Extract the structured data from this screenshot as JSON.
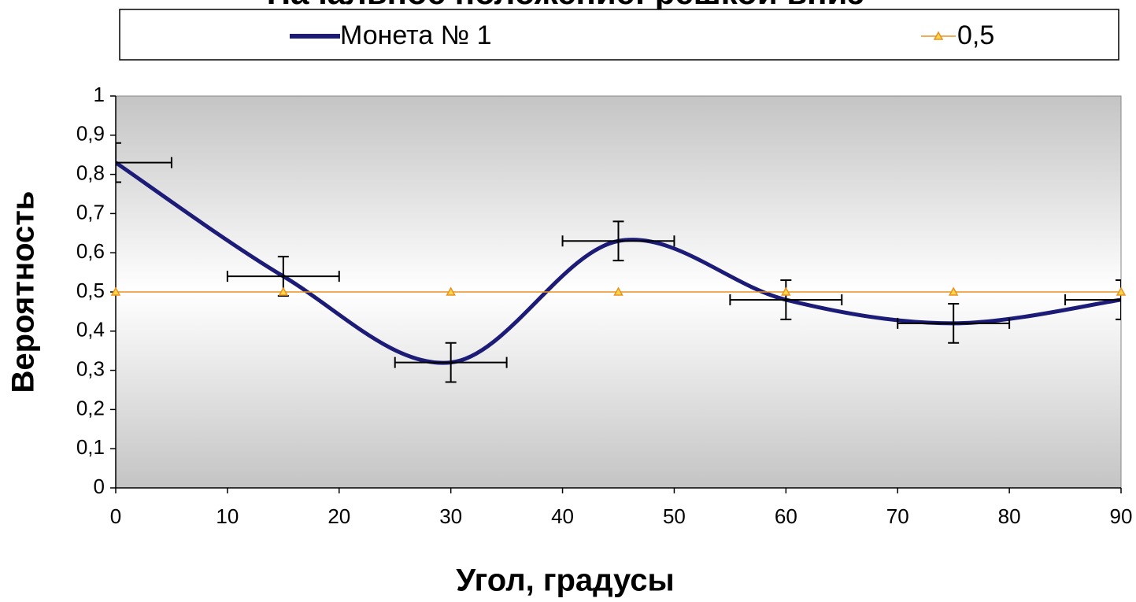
{
  "chart_data": {
    "type": "line",
    "title": "Начальное положение: решкой вниз",
    "x_label": "Угол, градусы",
    "y_label": "Вероятность",
    "x": [
      0,
      15,
      30,
      45,
      60,
      75,
      90
    ],
    "series": [
      {
        "name": "Монета № 1",
        "color": "#1c1c78",
        "values": [
          0.83,
          0.54,
          0.32,
          0.63,
          0.48,
          0.42,
          0.48
        ],
        "yerr": 0.05,
        "xerr": 5,
        "smooth": true
      },
      {
        "name": "0,5",
        "color": "#e8921e",
        "values": [
          0.5,
          0.5,
          0.5,
          0.5,
          0.5,
          0.5,
          0.5
        ],
        "marker": "triangle"
      }
    ],
    "xlim": [
      0,
      90
    ],
    "xticks": [
      0,
      10,
      20,
      30,
      40,
      50,
      60,
      70,
      80,
      90
    ],
    "ylim": [
      0,
      1
    ],
    "yticks": [
      0,
      {
        "value": 0.1,
        "label": "0,1"
      },
      {
        "value": 0.2,
        "label": "0,2"
      },
      {
        "value": 0.3,
        "label": "0,3"
      },
      {
        "value": 0.4,
        "label": "0,4"
      },
      {
        "value": 0.5,
        "label": "0,5"
      },
      {
        "value": 0.6,
        "label": "0,6"
      },
      {
        "value": 0.7,
        "label": "0,7"
      },
      {
        "value": 0.8,
        "label": "0,8"
      },
      {
        "value": 0.9,
        "label": "0,9"
      },
      1
    ]
  }
}
